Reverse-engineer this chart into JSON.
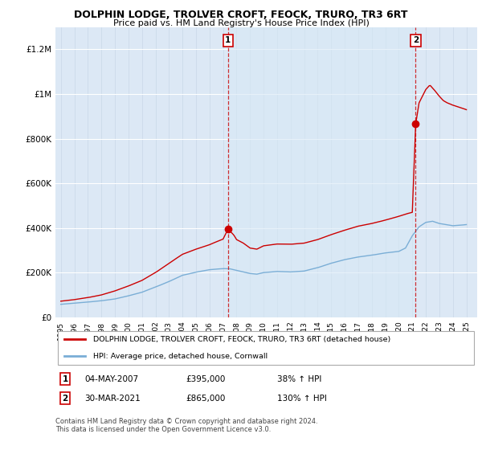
{
  "title": "DOLPHIN LODGE, TROLVER CROFT, FEOCK, TRURO, TR3 6RT",
  "subtitle": "Price paid vs. HM Land Registry's House Price Index (HPI)",
  "ylabel_ticks": [
    "£0",
    "£200K",
    "£400K",
    "£600K",
    "£800K",
    "£1M",
    "£1.2M"
  ],
  "ytick_vals": [
    0,
    200000,
    400000,
    600000,
    800000,
    1000000,
    1200000
  ],
  "ylim": [
    0,
    1300000
  ],
  "legend_line1": "DOLPHIN LODGE, TROLVER CROFT, FEOCK, TRURO, TR3 6RT (detached house)",
  "legend_line2": "HPI: Average price, detached house, Cornwall",
  "annotation1": {
    "label": "1",
    "date": "04-MAY-2007",
    "price": "£395,000",
    "pct": "38% ↑ HPI"
  },
  "annotation2": {
    "label": "2",
    "date": "30-MAR-2021",
    "price": "£865,000",
    "pct": "130% ↑ HPI"
  },
  "footer": "Contains HM Land Registry data © Crown copyright and database right 2024.\nThis data is licensed under the Open Government Licence v3.0.",
  "red_color": "#cc0000",
  "blue_color": "#7aaed6",
  "shade_color": "#d8e8f5",
  "background_plot": "#dce8f5",
  "grid_color": "#c8d8e8",
  "sale1_x": 2007.37,
  "sale1_y": 395000,
  "sale2_x": 2021.25,
  "sale2_y": 865000,
  "xlim": [
    1994.6,
    2025.8
  ]
}
